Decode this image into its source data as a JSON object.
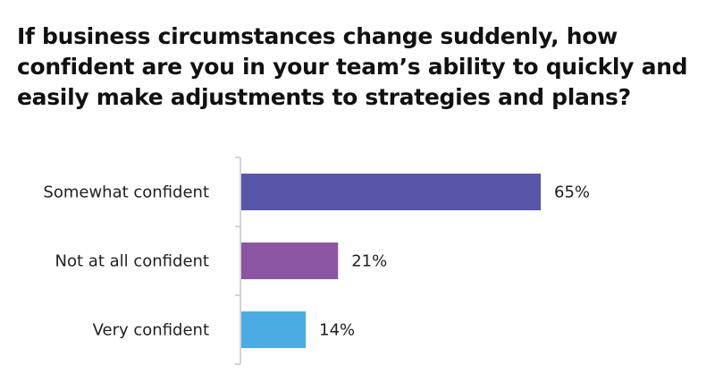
{
  "chart_data": {
    "type": "bar",
    "orientation": "horizontal",
    "title": "If business circumstances change suddenly, how confident are you in your team’s ability to quickly and easily make adjustments to strategies and plans?",
    "categories": [
      "Somewhat confident",
      "Not at all confident",
      "Very confident"
    ],
    "values": [
      65,
      21,
      14
    ],
    "value_labels": [
      "65%",
      "21%",
      "14%"
    ],
    "colors": [
      "#5756a8",
      "#8c55a4",
      "#4aace2"
    ],
    "axis_color": "#d3d3d6",
    "xlim": [
      0,
      100
    ],
    "grid": false,
    "legend": "none"
  }
}
